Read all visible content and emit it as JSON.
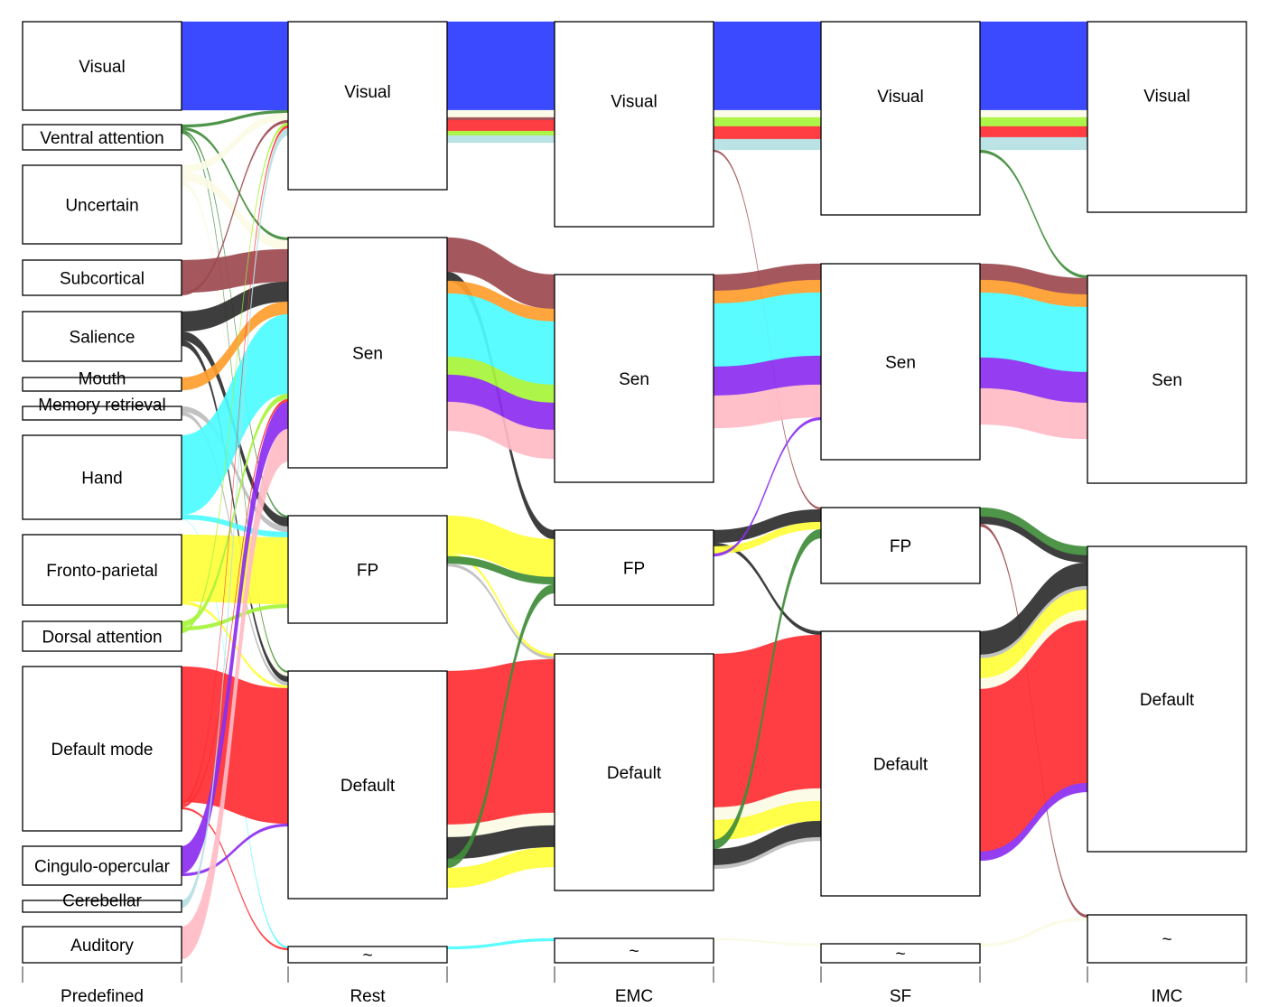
{
  "chart_data": {
    "type": "alluvial",
    "axes": [
      "Predefined",
      "Rest",
      "EMC",
      "SF",
      "IMC"
    ],
    "nodes": {
      "Predefined": [
        "Visual",
        "Ventral attention",
        "Uncertain",
        "Subcortical",
        "Salience",
        "Mouth",
        "Memory retrieval",
        "Hand",
        "Fronto-parietal",
        "Dorsal attention",
        "Default mode",
        "Cingulo-opercular",
        "Cerebellar",
        "Auditory"
      ],
      "Rest": [
        "Visual",
        "Sen",
        "FP",
        "Default",
        "~"
      ],
      "EMC": [
        "Visual",
        "Sen",
        "FP",
        "Default",
        "~"
      ],
      "SF": [
        "Visual",
        "Sen",
        "FP",
        "Default",
        "~"
      ],
      "IMC": [
        "Visual",
        "Sen",
        "Default",
        "~"
      ]
    },
    "colors": {
      "Visual": "#2b3bff",
      "Uncertain": "#fbfbe6",
      "Subcortical": "#9c4a4f",
      "Salience": "#2e2e2e",
      "Mouth": "#ff9d2e",
      "Memory retrieval": "#bdbdbd",
      "Hand": "#4dfcff",
      "Fronto-parietal": "#ffff3b",
      "Dorsal attention": "#a6f43a",
      "Default mode": "#ff2e33",
      "Cingulo-opercular": "#8c2ef0",
      "Cerebellar": "#b5dfe3",
      "Auditory": "#ffbbc6",
      "Ventral attention": "#3f8c3a"
    },
    "stages": [
      {
        "from": "Predefined",
        "to": "Rest",
        "flows": [
          {
            "source": "Visual",
            "target": "Visual",
            "group": "Visual"
          },
          {
            "source": "Ventral attention",
            "target": "Visual",
            "group": "Ventral attention"
          },
          {
            "source": "Ventral attention",
            "target": "Sen",
            "group": "Ventral attention"
          },
          {
            "source": "Ventral attention",
            "target": "FP",
            "group": "Ventral attention"
          },
          {
            "source": "Ventral attention",
            "target": "Default",
            "group": "Ventral attention"
          },
          {
            "source": "Uncertain",
            "target": "Visual",
            "group": "Uncertain"
          },
          {
            "source": "Uncertain",
            "target": "Sen",
            "group": "Uncertain"
          },
          {
            "source": "Uncertain",
            "target": "Default",
            "group": "Uncertain"
          },
          {
            "source": "Subcortical",
            "target": "Sen",
            "group": "Subcortical"
          },
          {
            "source": "Subcortical",
            "target": "Visual",
            "group": "Subcortical"
          },
          {
            "source": "Salience",
            "target": "Sen",
            "group": "Salience"
          },
          {
            "source": "Salience",
            "target": "FP",
            "group": "Salience"
          },
          {
            "source": "Salience",
            "target": "Default",
            "group": "Salience"
          },
          {
            "source": "Mouth",
            "target": "Sen",
            "group": "Mouth"
          },
          {
            "source": "Memory retrieval",
            "target": "FP",
            "group": "Memory retrieval"
          },
          {
            "source": "Memory retrieval",
            "target": "Default",
            "group": "Memory retrieval"
          },
          {
            "source": "Hand",
            "target": "Sen",
            "group": "Hand"
          },
          {
            "source": "Hand",
            "target": "FP",
            "group": "Hand"
          },
          {
            "source": "Hand",
            "target": "~",
            "group": "Hand"
          },
          {
            "source": "Fronto-parietal",
            "target": "FP",
            "group": "Fronto-parietal"
          },
          {
            "source": "Fronto-parietal",
            "target": "Default",
            "group": "Fronto-parietal"
          },
          {
            "source": "Dorsal attention",
            "target": "Sen",
            "group": "Dorsal attention"
          },
          {
            "source": "Dorsal attention",
            "target": "FP",
            "group": "Dorsal attention"
          },
          {
            "source": "Dorsal attention",
            "target": "Visual",
            "group": "Dorsal attention"
          },
          {
            "source": "Default mode",
            "target": "Default",
            "group": "Default mode"
          },
          {
            "source": "Default mode",
            "target": "Visual",
            "group": "Default mode"
          },
          {
            "source": "Default mode",
            "target": "Sen",
            "group": "Default mode"
          },
          {
            "source": "Default mode",
            "target": "~",
            "group": "Default mode"
          },
          {
            "source": "Cingulo-opercular",
            "target": "Sen",
            "group": "Cingulo-opercular"
          },
          {
            "source": "Cingulo-opercular",
            "target": "Default",
            "group": "Cingulo-opercular"
          },
          {
            "source": "Cerebellar",
            "target": "Visual",
            "group": "Cerebellar"
          },
          {
            "source": "Auditory",
            "target": "Sen",
            "group": "Auditory"
          }
        ]
      },
      {
        "from": "Rest",
        "to": "EMC",
        "flows": [
          {
            "source": "Visual",
            "target": "Visual",
            "group": "Visual"
          },
          {
            "source": "Visual",
            "target": "Visual",
            "group": "Uncertain"
          },
          {
            "source": "Visual",
            "target": "Visual",
            "group": "Subcortical"
          },
          {
            "source": "Visual",
            "target": "Visual",
            "group": "Default mode"
          },
          {
            "source": "Visual",
            "target": "Visual",
            "group": "Dorsal attention"
          },
          {
            "source": "Visual",
            "target": "Visual",
            "group": "Cerebellar"
          },
          {
            "source": "Sen",
            "target": "Sen",
            "group": "Subcortical"
          },
          {
            "source": "Sen",
            "target": "FP",
            "group": "Salience"
          },
          {
            "source": "Sen",
            "target": "Sen",
            "group": "Mouth"
          },
          {
            "source": "Sen",
            "target": "Sen",
            "group": "Hand"
          },
          {
            "source": "Sen",
            "target": "Sen",
            "group": "Dorsal attention"
          },
          {
            "source": "Sen",
            "target": "Sen",
            "group": "Cingulo-opercular"
          },
          {
            "source": "Sen",
            "target": "Sen",
            "group": "Auditory"
          },
          {
            "source": "FP",
            "target": "FP",
            "group": "Fronto-parietal"
          },
          {
            "source": "FP",
            "target": "Default",
            "group": "Fronto-parietal"
          },
          {
            "source": "FP",
            "target": "FP",
            "group": "Ventral attention"
          },
          {
            "source": "FP",
            "target": "Default",
            "group": "Memory retrieval"
          },
          {
            "source": "Default",
            "target": "Default",
            "group": "Default mode"
          },
          {
            "source": "Default",
            "target": "Default",
            "group": "Uncertain"
          },
          {
            "source": "Default",
            "target": "Default",
            "group": "Salience"
          },
          {
            "source": "Default",
            "target": "FP",
            "group": "Ventral attention"
          },
          {
            "source": "Default",
            "target": "Default",
            "group": "Fronto-parietal"
          },
          {
            "source": "~",
            "target": "~",
            "group": "Hand"
          }
        ]
      },
      {
        "from": "EMC",
        "to": "SF",
        "flows": [
          {
            "source": "Visual",
            "target": "Visual",
            "group": "Visual"
          },
          {
            "source": "Visual",
            "target": "Visual",
            "group": "Uncertain"
          },
          {
            "source": "Visual",
            "target": "Visual",
            "group": "Dorsal attention"
          },
          {
            "source": "Visual",
            "target": "Visual",
            "group": "Default mode"
          },
          {
            "source": "Visual",
            "target": "Visual",
            "group": "Cerebellar"
          },
          {
            "source": "Visual",
            "target": "FP",
            "group": "Subcortical"
          },
          {
            "source": "Sen",
            "target": "Sen",
            "group": "Subcortical"
          },
          {
            "source": "Sen",
            "target": "Sen",
            "group": "Mouth"
          },
          {
            "source": "Sen",
            "target": "Sen",
            "group": "Hand"
          },
          {
            "source": "Sen",
            "target": "Sen",
            "group": "Cingulo-opercular"
          },
          {
            "source": "Sen",
            "target": "Sen",
            "group": "Auditory"
          },
          {
            "source": "FP",
            "target": "FP",
            "group": "Salience"
          },
          {
            "source": "FP",
            "target": "Default",
            "group": "Salience"
          },
          {
            "source": "FP",
            "target": "FP",
            "group": "Fronto-parietal"
          },
          {
            "source": "FP",
            "target": "Sen",
            "group": "Cingulo-opercular"
          },
          {
            "source": "Default",
            "target": "Default",
            "group": "Default mode"
          },
          {
            "source": "Default",
            "target": "Default",
            "group": "Uncertain"
          },
          {
            "source": "Default",
            "target": "Default",
            "group": "Fronto-parietal"
          },
          {
            "source": "Default",
            "target": "FP",
            "group": "Ventral attention"
          },
          {
            "source": "Default",
            "target": "Default",
            "group": "Salience"
          },
          {
            "source": "Default",
            "target": "Default",
            "group": "Memory retrieval"
          },
          {
            "source": "~",
            "target": "~",
            "group": "Uncertain"
          }
        ]
      },
      {
        "from": "SF",
        "to": "IMC",
        "flows": [
          {
            "source": "Visual",
            "target": "Visual",
            "group": "Visual"
          },
          {
            "source": "Visual",
            "target": "Visual",
            "group": "Uncertain"
          },
          {
            "source": "Visual",
            "target": "Visual",
            "group": "Dorsal attention"
          },
          {
            "source": "Visual",
            "target": "Visual",
            "group": "Default mode"
          },
          {
            "source": "Visual",
            "target": "Visual",
            "group": "Cerebellar"
          },
          {
            "source": "Visual",
            "target": "Sen",
            "group": "Ventral attention"
          },
          {
            "source": "Sen",
            "target": "Sen",
            "group": "Subcortical"
          },
          {
            "source": "Sen",
            "target": "Sen",
            "group": "Mouth"
          },
          {
            "source": "Sen",
            "target": "Sen",
            "group": "Hand"
          },
          {
            "source": "Sen",
            "target": "Sen",
            "group": "Cingulo-opercular"
          },
          {
            "source": "Sen",
            "target": "Sen",
            "group": "Auditory"
          },
          {
            "source": "FP",
            "target": "Default",
            "group": "Ventral attention"
          },
          {
            "source": "FP",
            "target": "Default",
            "group": "Salience"
          },
          {
            "source": "FP",
            "target": "~",
            "group": "Subcortical"
          },
          {
            "source": "Default",
            "target": "Default",
            "group": "Salience"
          },
          {
            "source": "Default",
            "target": "Default",
            "group": "Memory retrieval"
          },
          {
            "source": "Default",
            "target": "Default",
            "group": "Fronto-parietal"
          },
          {
            "source": "Default",
            "target": "Default",
            "group": "Uncertain"
          },
          {
            "source": "Default",
            "target": "Default",
            "group": "Default mode"
          },
          {
            "source": "Default",
            "target": "Default",
            "group": "Cingulo-opercular"
          },
          {
            "source": "~",
            "target": "~",
            "group": "Uncertain"
          }
        ]
      }
    ]
  }
}
